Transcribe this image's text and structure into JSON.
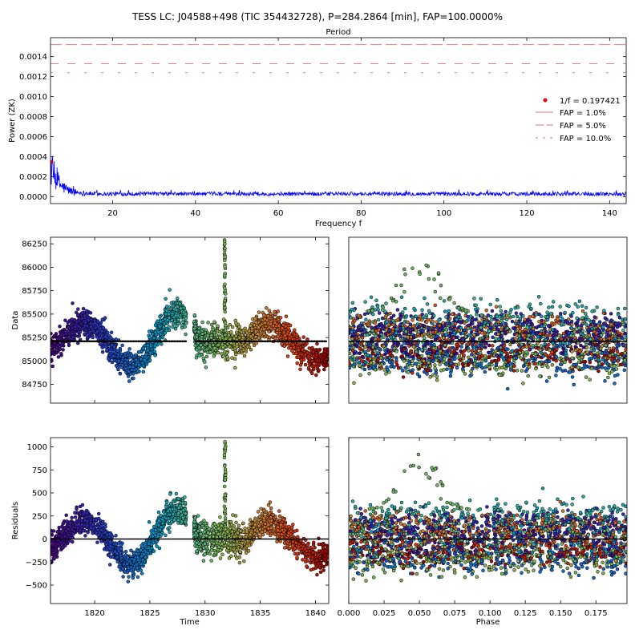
{
  "figure": {
    "title": "TESS LC: J04588+498 (TIC 354432728), P=284.2864 [min], FAP=100.0000%"
  },
  "chart_data": [
    {
      "id": "periodogram",
      "type": "line",
      "title": "Period",
      "xlabel": "Frequency f",
      "ylabel": "Power (ZK)",
      "xlim": [
        5,
        144
      ],
      "ylim": [
        -7e-05,
        0.00159
      ],
      "xticks": [
        20,
        40,
        60,
        80,
        100,
        120,
        140
      ],
      "yticks": [
        0.0,
        0.0002,
        0.0004,
        0.0006,
        0.0008,
        0.001,
        0.0012,
        0.0014
      ],
      "ytick_labels": [
        "0.0000",
        "0.0002",
        "0.0004",
        "0.0006",
        "0.0008",
        "0.0010",
        "0.0012",
        "0.0014"
      ],
      "series": [
        {
          "name": "power",
          "color": "#0000ff",
          "baseline": 3e-05,
          "peak_low_freq": 0.00033
        },
        {
          "name": "FAP = 1.0%",
          "style": "long-dash",
          "value": 0.00152,
          "color": "#e36f6f"
        },
        {
          "name": "FAP = 5.0%",
          "style": "dash",
          "value": 0.00133,
          "color": "#e36f6f"
        },
        {
          "name": "FAP = 10.0%",
          "style": "short-dash",
          "value": 0.00124,
          "color": "#e36f6f"
        }
      ],
      "best_frequency_marker": {
        "label": "1/f = 0.197421",
        "x": 5.07,
        "y": 0.000345,
        "color": "#ff0000"
      },
      "legend_position": "center-right"
    },
    {
      "id": "data-vs-time",
      "type": "scatter",
      "xlabel": "",
      "ylabel": "Data",
      "xlim": [
        1816,
        1841.2
      ],
      "ylim": [
        84550,
        86320
      ],
      "xticks": [
        1820,
        1825,
        1830,
        1835,
        1840
      ],
      "yticks": [
        84750,
        85000,
        85250,
        85500,
        85750,
        86000,
        86250
      ],
      "ytick_labels": [
        "84750",
        "85000",
        "85250",
        "85500",
        "85750",
        "86000",
        "86250"
      ],
      "model_level": 85210,
      "time_gaps": [
        [
          1828.3,
          1829.0
        ]
      ],
      "signal": {
        "mean": 85210,
        "amplitude": 290,
        "period_days": 8.4,
        "phase_zero": 1816.9
      },
      "flare": {
        "time": 1831.8,
        "peak": 86300
      },
      "colormap": "rainbow-dark"
    },
    {
      "id": "data-vs-phase",
      "type": "scatter",
      "xlim": [
        0,
        0.197
      ],
      "ylim": [
        84550,
        86320
      ],
      "model_level": 85210,
      "bump": {
        "phase_center": 0.05,
        "peak": 86300
      },
      "colormap": "rainbow-dark"
    },
    {
      "id": "residuals-vs-time",
      "type": "scatter",
      "xlabel": "Time",
      "ylabel": "Residuals",
      "xlim": [
        1816,
        1841.2
      ],
      "ylim": [
        -700,
        1100
      ],
      "xticks": [
        1820,
        1825,
        1830,
        1835,
        1840
      ],
      "yticks": [
        -500,
        -250,
        0,
        250,
        500,
        750,
        1000
      ],
      "ytick_labels": [
        "−500",
        "−250",
        "0",
        "250",
        "500",
        "750",
        "1000"
      ],
      "model_level": 0,
      "colormap": "rainbow-dark"
    },
    {
      "id": "residuals-vs-phase",
      "type": "scatter",
      "xlabel": "Phase",
      "xlim": [
        0,
        0.197
      ],
      "ylim": [
        -700,
        1100
      ],
      "xticks": [
        0.0,
        0.025,
        0.05,
        0.075,
        0.1,
        0.125,
        0.15,
        0.175
      ],
      "xtick_labels": [
        "0.000",
        "0.025",
        "0.050",
        "0.075",
        "0.100",
        "0.125",
        "0.150",
        "0.175"
      ],
      "model_level": 0,
      "colormap": "rainbow-dark"
    }
  ]
}
